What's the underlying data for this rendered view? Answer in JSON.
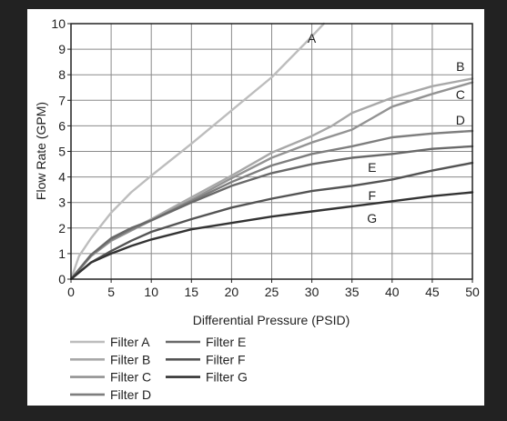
{
  "chart_data": {
    "type": "line",
    "title": "",
    "xlabel": "Differential Pressure (PSID)",
    "ylabel": "Flow Rate (GPM)",
    "xlim": [
      0,
      50
    ],
    "ylim": [
      0,
      10
    ],
    "xticks": [
      0,
      5,
      10,
      15,
      20,
      25,
      30,
      35,
      40,
      45,
      50
    ],
    "yticks": [
      0,
      1,
      2,
      3,
      4,
      5,
      6,
      7,
      8,
      9,
      10
    ],
    "grid": true,
    "legend_position": "bottom-left",
    "series": [
      {
        "name": "Filter A",
        "label": "A",
        "color": "#bdbdbd",
        "x": [
          0,
          1,
          2.5,
          5,
          7.5,
          10,
          15,
          20,
          25,
          30,
          31.5
        ],
        "y": [
          0,
          0.9,
          1.6,
          2.6,
          3.4,
          4.05,
          5.3,
          6.6,
          7.9,
          9.5,
          10
        ]
      },
      {
        "name": "Filter B",
        "label": "B",
        "color": "#a8a8a8",
        "x": [
          0,
          2.5,
          5,
          7.5,
          10,
          15,
          20,
          25,
          30,
          32.5,
          35,
          40,
          45,
          50
        ],
        "y": [
          0,
          0.9,
          1.55,
          1.95,
          2.35,
          3.2,
          4.05,
          4.95,
          5.6,
          6.0,
          6.5,
          7.1,
          7.55,
          7.85
        ]
      },
      {
        "name": "Filter C",
        "label": "C",
        "color": "#939393",
        "x": [
          0,
          2.5,
          5,
          7.5,
          10,
          15,
          20,
          25,
          30,
          35,
          37.5,
          40,
          45,
          50
        ],
        "y": [
          0,
          0.9,
          1.5,
          1.9,
          2.3,
          3.1,
          3.95,
          4.75,
          5.35,
          5.85,
          6.3,
          6.75,
          7.25,
          7.7
        ]
      },
      {
        "name": "Filter D",
        "label": "D",
        "color": "#7e7e7e",
        "x": [
          0,
          2.5,
          5,
          7.5,
          10,
          15,
          20,
          25,
          30,
          35,
          40,
          45,
          50
        ],
        "y": [
          0,
          0.95,
          1.55,
          1.95,
          2.3,
          3.05,
          3.8,
          4.45,
          4.9,
          5.2,
          5.55,
          5.7,
          5.8
        ]
      },
      {
        "name": "Filter E",
        "label": "E",
        "color": "#696969",
        "x": [
          0,
          2.5,
          5,
          7.5,
          10,
          15,
          20,
          25,
          30,
          35,
          40,
          45,
          50
        ],
        "y": [
          0,
          0.95,
          1.6,
          2.0,
          2.3,
          3.0,
          3.65,
          4.15,
          4.5,
          4.75,
          4.9,
          5.1,
          5.2
        ]
      },
      {
        "name": "Filter F",
        "label": "F",
        "color": "#545454",
        "x": [
          0,
          2.5,
          5,
          7.5,
          10,
          15,
          20,
          25,
          30,
          35,
          40,
          45,
          50
        ],
        "y": [
          0,
          0.65,
          1.1,
          1.5,
          1.85,
          2.35,
          2.8,
          3.15,
          3.45,
          3.65,
          3.9,
          4.25,
          4.55
        ]
      },
      {
        "name": "Filter G",
        "label": "G",
        "color": "#333333",
        "x": [
          0,
          2.5,
          5,
          7.5,
          10,
          15,
          20,
          25,
          30,
          35,
          40,
          45,
          50
        ],
        "y": [
          0,
          0.65,
          1.0,
          1.3,
          1.55,
          1.95,
          2.2,
          2.45,
          2.65,
          2.85,
          3.05,
          3.25,
          3.4
        ]
      }
    ]
  }
}
